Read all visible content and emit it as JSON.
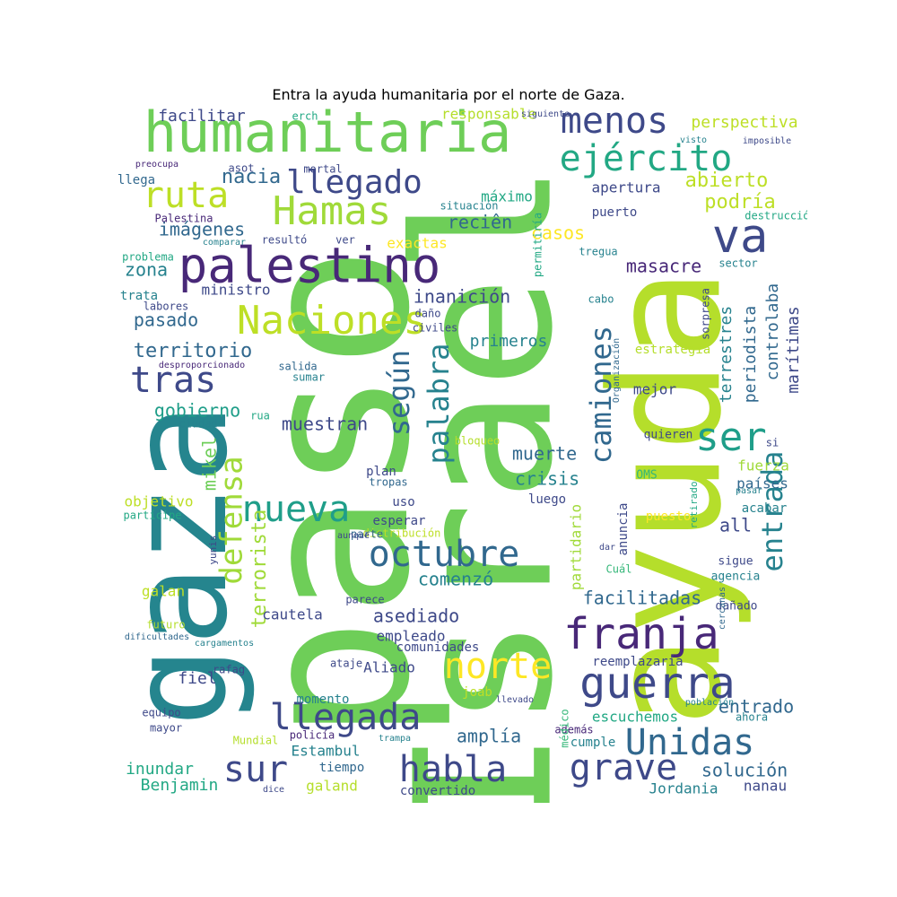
{
  "title": "Entra la ayuda humanitaria por el norte de Gaza.",
  "words": [
    {
      "text": "Israel",
      "color": "#6ece58"
    },
    {
      "text": "paso",
      "color": "#6ece58"
    },
    {
      "text": "ayuda",
      "color": "#b5de2b"
    },
    {
      "text": "gaza",
      "color": "#25858e"
    },
    {
      "text": "humanitaria",
      "color": "#6ece58"
    },
    {
      "text": "palestino",
      "color": "#482878"
    },
    {
      "text": "Naciones",
      "color": "#bddf26"
    },
    {
      "text": "Hamas",
      "color": "#a0da39"
    },
    {
      "text": "ruta",
      "color": "#bddf26"
    },
    {
      "text": "va",
      "color": "#3e4989"
    },
    {
      "text": "menos",
      "color": "#3e4989"
    },
    {
      "text": "ejército",
      "color": "#22a884"
    },
    {
      "text": "llegado",
      "color": "#3e4989"
    },
    {
      "text": "franja",
      "color": "#482878"
    },
    {
      "text": "guerra",
      "color": "#3e4989"
    },
    {
      "text": "norte",
      "color": "#fde725"
    },
    {
      "text": "habla",
      "color": "#3e4989"
    },
    {
      "text": "grave",
      "color": "#3e4989"
    },
    {
      "text": "Unidas",
      "color": "#31688e"
    },
    {
      "text": "llegada",
      "color": "#3e4989"
    },
    {
      "text": "sur",
      "color": "#3e4989"
    },
    {
      "text": "octubre",
      "color": "#31688e"
    },
    {
      "text": "nueva",
      "color": "#1f9e89"
    },
    {
      "text": "ser",
      "color": "#1f9e89"
    },
    {
      "text": "tras",
      "color": "#3e4989"
    },
    {
      "text": "defensa",
      "color": "#a0da39"
    },
    {
      "text": "según",
      "color": "#31688e"
    },
    {
      "text": "palabra",
      "color": "#26828e"
    },
    {
      "text": "camiones",
      "color": "#31688e"
    },
    {
      "text": "entrada",
      "color": "#26828e"
    },
    {
      "text": "facilitar",
      "color": "#3e4989"
    },
    {
      "text": "responsable",
      "color": "#b5de2b"
    },
    {
      "text": "perspectiva",
      "color": "#bddf26"
    },
    {
      "text": "abierto",
      "color": "#bddf26"
    },
    {
      "text": "podría",
      "color": "#bddf26"
    },
    {
      "text": "nacia",
      "color": "#31688e"
    },
    {
      "text": "imágenes",
      "color": "#31688e"
    },
    {
      "text": "reciên",
      "color": "#31688e"
    },
    {
      "text": "casos",
      "color": "#fde725"
    },
    {
      "text": "zona",
      "color": "#26828e"
    },
    {
      "text": "masacre",
      "color": "#482878"
    },
    {
      "text": "inanición",
      "color": "#3e4989"
    },
    {
      "text": "pasado",
      "color": "#31688e"
    },
    {
      "text": "territorio",
      "color": "#31688e"
    },
    {
      "text": "primeros",
      "color": "#26828e"
    },
    {
      "text": "gobierno",
      "color": "#1f9e89"
    },
    {
      "text": "muestran",
      "color": "#3e4989"
    },
    {
      "text": "muerte",
      "color": "#31688e"
    },
    {
      "text": "crisis",
      "color": "#26828e"
    },
    {
      "text": "controlaba",
      "color": "#31688e"
    },
    {
      "text": "marítimas",
      "color": "#3e4989"
    },
    {
      "text": "terrestres",
      "color": "#26828e"
    },
    {
      "text": "periodista",
      "color": "#31688e"
    },
    {
      "text": "mejor",
      "color": "#3e4989"
    },
    {
      "text": "fuerza",
      "color": "#a0da39"
    },
    {
      "text": "países",
      "color": "#31688e"
    },
    {
      "text": "acabar",
      "color": "#26828e"
    },
    {
      "text": "all",
      "color": "#3e4989"
    },
    {
      "text": "comenzó",
      "color": "#26828e"
    },
    {
      "text": "asediado",
      "color": "#3e4989"
    },
    {
      "text": "facilitadas",
      "color": "#31688e"
    },
    {
      "text": "Aliado",
      "color": "#3e4989"
    },
    {
      "text": "empleado",
      "color": "#3e4989"
    },
    {
      "text": "entrado",
      "color": "#31688e"
    },
    {
      "text": "escuchemos",
      "color": "#22a884"
    },
    {
      "text": "amplía",
      "color": "#31688e"
    },
    {
      "text": "solución",
      "color": "#31688e"
    },
    {
      "text": "Jordania",
      "color": "#26828e"
    },
    {
      "text": "nanau",
      "color": "#3e4989"
    },
    {
      "text": "inundar",
      "color": "#22a884"
    },
    {
      "text": "Benjamin",
      "color": "#22a884"
    },
    {
      "text": "Estambul",
      "color": "#26828e"
    },
    {
      "text": "galand",
      "color": "#b5de2b"
    },
    {
      "text": "convertido",
      "color": "#3e4989"
    },
    {
      "text": "fiel",
      "color": "#3e4989"
    },
    {
      "text": "terrorista",
      "color": "#a0da39"
    },
    {
      "text": "mikel",
      "color": "#6ece58"
    },
    {
      "text": "objetivo",
      "color": "#bddf26"
    },
    {
      "text": "cautela",
      "color": "#3e4989"
    },
    {
      "text": "galan",
      "color": "#bddf26"
    },
    {
      "text": "ministro",
      "color": "#3e4989"
    },
    {
      "text": "trata",
      "color": "#26828e"
    },
    {
      "text": "máximo",
      "color": "#22a884"
    },
    {
      "text": "apertura",
      "color": "#3e4989"
    },
    {
      "text": "exactas",
      "color": "#fde725"
    },
    {
      "text": "estrategia",
      "color": "#b5de2b"
    },
    {
      "text": "plan",
      "color": "#3e4989"
    },
    {
      "text": "uso",
      "color": "#3e4989"
    },
    {
      "text": "luego",
      "color": "#3e4989"
    },
    {
      "text": "esperar",
      "color": "#3e4989"
    },
    {
      "text": "momento",
      "color": "#26828e"
    },
    {
      "text": "joab",
      "color": "#bddf26"
    },
    {
      "text": "cumple",
      "color": "#26828e"
    },
    {
      "text": "tiempo",
      "color": "#31688e"
    },
    {
      "text": "ataje",
      "color": "#3e4989"
    },
    {
      "text": "comunidades",
      "color": "#3e4989"
    },
    {
      "text": "reemplazaría",
      "color": "#3e4989"
    },
    {
      "text": "partidario",
      "color": "#a0da39"
    },
    {
      "text": "anuncia",
      "color": "#3e4989"
    },
    {
      "text": "puesto",
      "color": "#fde725"
    },
    {
      "text": "sigue",
      "color": "#3e4989"
    },
    {
      "text": "agencia",
      "color": "#26828e"
    },
    {
      "text": "dañado",
      "color": "#3e4989"
    },
    {
      "text": "quieren",
      "color": "#3e4989"
    },
    {
      "text": "erch",
      "color": "#22a884"
    },
    {
      "text": "siguiente",
      "color": "#3e4989"
    },
    {
      "text": "visto",
      "color": "#26828e"
    },
    {
      "text": "imposible",
      "color": "#3e4989"
    },
    {
      "text": "preocupa",
      "color": "#482878"
    },
    {
      "text": "asot",
      "color": "#3e4989"
    },
    {
      "text": "mortal",
      "color": "#3e4989"
    },
    {
      "text": "llega",
      "color": "#31688e"
    },
    {
      "text": "Palestina",
      "color": "#482878"
    },
    {
      "text": "comparar",
      "color": "#26828e"
    },
    {
      "text": "resultó",
      "color": "#3e4989"
    },
    {
      "text": "ver",
      "color": "#3e4989"
    },
    {
      "text": "puerto",
      "color": "#3e4989"
    },
    {
      "text": "tregua",
      "color": "#26828e"
    },
    {
      "text": "destrucción",
      "color": "#22a884"
    },
    {
      "text": "problema",
      "color": "#22a884"
    },
    {
      "text": "sector",
      "color": "#26828e"
    },
    {
      "text": "labores",
      "color": "#3e4989"
    },
    {
      "text": "cabo",
      "color": "#26828e"
    },
    {
      "text": "daño",
      "color": "#3e4989"
    },
    {
      "text": "civiles",
      "color": "#3e4989"
    },
    {
      "text": "situación",
      "color": "#26828e"
    },
    {
      "text": "permitiría",
      "color": "#22a884"
    },
    {
      "text": "sorpresa",
      "color": "#3e4989"
    },
    {
      "text": "desproporcionado",
      "color": "#482878"
    },
    {
      "text": "salida",
      "color": "#31688e"
    },
    {
      "text": "sumar",
      "color": "#26828e"
    },
    {
      "text": "Organización",
      "color": "#31688e"
    },
    {
      "text": "ciudad",
      "color": "#26828e"
    },
    {
      "text": "rua",
      "color": "#22a884"
    },
    {
      "text": "bloqueo",
      "color": "#b5de2b"
    },
    {
      "text": "si",
      "color": "#3e4989"
    },
    {
      "text": "OMS",
      "color": "#35b779"
    },
    {
      "text": "retirado",
      "color": "#22a884"
    },
    {
      "text": "pasar",
      "color": "#26828e"
    },
    {
      "text": "tropas",
      "color": "#31688e"
    },
    {
      "text": "partícipe",
      "color": "#22a884"
    },
    {
      "text": "yunis",
      "color": "#3e4989"
    },
    {
      "text": "distribución",
      "color": "#bddf26"
    },
    {
      "text": "parte",
      "color": "#31688e"
    },
    {
      "text": "aunque",
      "color": "#3e4989"
    },
    {
      "text": "dar",
      "color": "#3e4989"
    },
    {
      "text": "Cuál",
      "color": "#35b779"
    },
    {
      "text": "parece",
      "color": "#3e4989"
    },
    {
      "text": "cercanas",
      "color": "#31688e"
    },
    {
      "text": "futuro",
      "color": "#b5de2b"
    },
    {
      "text": "dificultades",
      "color": "#31688e"
    },
    {
      "text": "cargamentos",
      "color": "#26828e"
    },
    {
      "text": "rafag",
      "color": "#3e4989"
    },
    {
      "text": "equipo",
      "color": "#3e4989"
    },
    {
      "text": "mayor",
      "color": "#3e4989"
    },
    {
      "text": "además",
      "color": "#482878"
    },
    {
      "text": "médico",
      "color": "#35b779"
    },
    {
      "text": "llevado",
      "color": "#3e4989"
    },
    {
      "text": "población",
      "color": "#26828e"
    },
    {
      "text": "ahora",
      "color": "#26828e"
    },
    {
      "text": "policía",
      "color": "#482878"
    },
    {
      "text": "Mundial",
      "color": "#b5de2b"
    },
    {
      "text": "trampa",
      "color": "#26828e"
    },
    {
      "text": "dice",
      "color": "#3e4989"
    },
    {
      "text": "Salud",
      "color": "#3e4989"
    },
    {
      "text": "operación",
      "color": "#b5de2b"
    }
  ]
}
